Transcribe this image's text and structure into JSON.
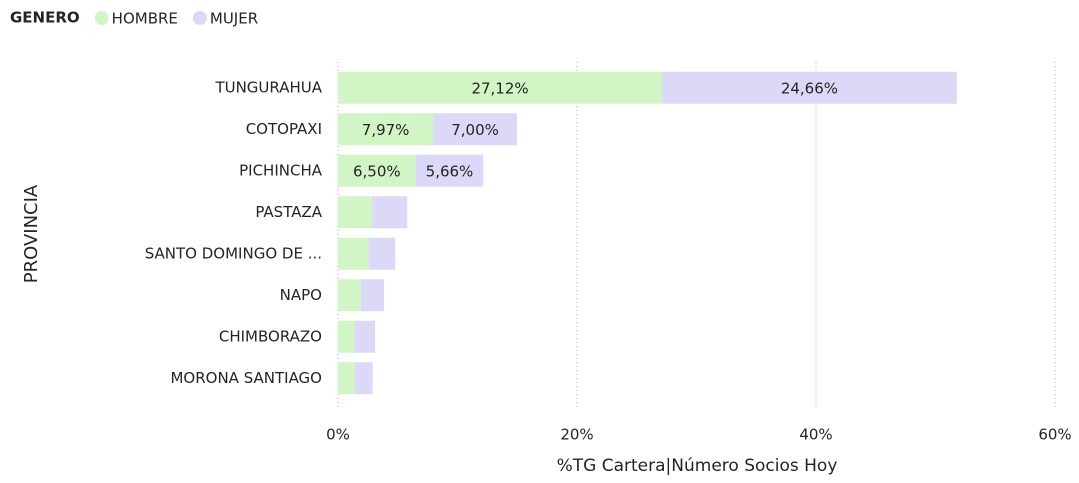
{
  "chart_data": {
    "type": "stacked_barh",
    "legend_title": "GENERO",
    "xlabel": "%TG Cartera|Número Socios Hoy",
    "ylabel": "PROVINCIA",
    "categories": [
      "TUNGURAHUA",
      "COTOPAXI",
      "PICHINCHA",
      "PASTAZA",
      "SANTO DOMINGO DE ...",
      "NAPO",
      "CHIMBORAZO",
      "MORONA SANTIAGO"
    ],
    "series": [
      {
        "name": "HOMBRE",
        "color": "#d2f5c6",
        "values": [
          27.12,
          7.97,
          6.5,
          2.85,
          2.6,
          1.9,
          1.4,
          1.4
        ],
        "value_labels": [
          "27,12%",
          "7,97%",
          "6,50%",
          null,
          null,
          null,
          null,
          null
        ]
      },
      {
        "name": "MUJER",
        "color": "#dcd8f8",
        "values": [
          24.66,
          7.0,
          5.66,
          2.95,
          2.2,
          1.95,
          1.7,
          1.5
        ],
        "value_labels": [
          "24,66%",
          "7,00%",
          "5,66%",
          null,
          null,
          null,
          null,
          null
        ]
      }
    ],
    "xlim": [
      0,
      60
    ],
    "xticks": [
      {
        "value": 0,
        "label": "0%"
      },
      {
        "value": 20,
        "label": "20%"
      },
      {
        "value": 40,
        "label": "40%"
      },
      {
        "value": 60,
        "label": "60%"
      }
    ],
    "grid": true
  }
}
